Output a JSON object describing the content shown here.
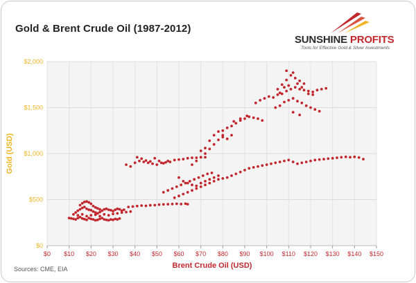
{
  "chart_data": {
    "type": "scatter",
    "title": "Gold & Brent Crude Oil (1987-2012)",
    "xlabel": "Brent Crude Oil (USD)",
    "ylabel": "Gold (USD)",
    "xlim": [
      0,
      150
    ],
    "ylim": [
      0,
      2000
    ],
    "x_ticks": [
      "$0",
      "$10",
      "$20",
      "$30",
      "$40",
      "$50",
      "$60",
      "$70",
      "$80",
      "$90",
      "$100",
      "$110",
      "$120",
      "$130",
      "$140",
      "$150"
    ],
    "y_ticks": [
      "$0",
      "$500",
      "$1,000",
      "$1,500",
      "$2,000"
    ],
    "grid": true,
    "series": [
      {
        "points": [
          [
            10,
            300
          ],
          [
            11,
            296
          ],
          [
            12,
            290
          ],
          [
            13,
            285
          ],
          [
            14,
            300
          ],
          [
            15,
            310
          ],
          [
            16,
            295
          ],
          [
            17,
            288
          ],
          [
            18,
            280
          ],
          [
            19,
            300
          ],
          [
            20,
            290
          ],
          [
            21,
            285
          ],
          [
            22,
            275
          ],
          [
            23,
            280
          ],
          [
            24,
            290
          ],
          [
            25,
            300
          ],
          [
            26,
            285
          ],
          [
            27,
            280
          ],
          [
            28,
            275
          ],
          [
            29,
            285
          ],
          [
            30,
            280
          ],
          [
            31,
            290
          ],
          [
            32,
            285
          ],
          [
            33,
            295
          ],
          [
            12,
            340
          ],
          [
            13,
            360
          ],
          [
            14,
            380
          ],
          [
            15,
            395
          ],
          [
            16,
            410
          ],
          [
            17,
            420
          ],
          [
            18,
            400
          ],
          [
            19,
            390
          ],
          [
            20,
            385
          ],
          [
            21,
            370
          ],
          [
            22,
            360
          ],
          [
            23,
            350
          ],
          [
            24,
            365
          ],
          [
            25,
            380
          ],
          [
            26,
            395
          ],
          [
            27,
            400
          ],
          [
            28,
            390
          ],
          [
            29,
            385
          ],
          [
            30,
            375
          ],
          [
            31,
            390
          ],
          [
            32,
            400
          ],
          [
            33,
            395
          ],
          [
            34,
            380
          ],
          [
            35,
            390
          ],
          [
            15,
            440
          ],
          [
            16,
            460
          ],
          [
            17,
            475
          ],
          [
            18,
            480
          ],
          [
            19,
            470
          ],
          [
            20,
            455
          ],
          [
            21,
            430
          ],
          [
            22,
            415
          ],
          [
            23,
            405
          ],
          [
            24,
            395
          ],
          [
            14,
            330
          ],
          [
            16,
            340
          ],
          [
            18,
            320
          ],
          [
            20,
            330
          ],
          [
            22,
            335
          ],
          [
            24,
            320
          ],
          [
            26,
            340
          ],
          [
            28,
            330
          ],
          [
            30,
            345
          ],
          [
            32,
            350
          ],
          [
            34,
            360
          ],
          [
            36,
            365
          ],
          [
            38,
            370
          ],
          [
            37,
            420
          ],
          [
            39,
            425
          ],
          [
            41,
            430
          ],
          [
            43,
            435
          ],
          [
            45,
            432
          ],
          [
            47,
            438
          ],
          [
            49,
            440
          ],
          [
            51,
            445
          ],
          [
            53,
            448
          ],
          [
            55,
            450
          ],
          [
            57,
            452
          ],
          [
            59,
            455
          ],
          [
            61,
            452
          ],
          [
            63,
            456
          ],
          [
            64,
            450
          ],
          [
            36,
            880
          ],
          [
            38,
            860
          ],
          [
            40,
            900
          ],
          [
            42,
            920
          ],
          [
            44,
            910
          ],
          [
            46,
            900
          ],
          [
            48,
            890
          ],
          [
            50,
            880
          ],
          [
            52,
            900
          ],
          [
            54,
            905
          ],
          [
            56,
            910
          ],
          [
            58,
            930
          ],
          [
            60,
            935
          ],
          [
            62,
            940
          ],
          [
            64,
            950
          ],
          [
            66,
            955
          ],
          [
            68,
            955
          ],
          [
            70,
            960
          ],
          [
            72,
            960
          ],
          [
            41,
            960
          ],
          [
            43,
            945
          ],
          [
            45,
            925
          ],
          [
            47,
            915
          ],
          [
            49,
            950
          ],
          [
            51,
            920
          ],
          [
            53,
            895
          ],
          [
            55,
            920
          ],
          [
            53,
            580
          ],
          [
            55,
            600
          ],
          [
            57,
            620
          ],
          [
            59,
            640
          ],
          [
            61,
            660
          ],
          [
            63,
            680
          ],
          [
            65,
            700
          ],
          [
            67,
            720
          ],
          [
            69,
            740
          ],
          [
            71,
            760
          ],
          [
            73,
            780
          ],
          [
            75,
            790
          ],
          [
            58,
            520
          ],
          [
            60,
            540
          ],
          [
            62,
            560
          ],
          [
            64,
            580
          ],
          [
            66,
            600
          ],
          [
            68,
            620
          ],
          [
            70,
            640
          ],
          [
            72,
            660
          ],
          [
            74,
            680
          ],
          [
            76,
            700
          ],
          [
            78,
            720
          ],
          [
            80,
            730
          ],
          [
            82,
            740
          ],
          [
            84,
            760
          ],
          [
            86,
            780
          ],
          [
            88,
            800
          ],
          [
            90,
            820
          ],
          [
            92,
            840
          ],
          [
            94,
            850
          ],
          [
            96,
            860
          ],
          [
            98,
            870
          ],
          [
            100,
            880
          ],
          [
            102,
            890
          ],
          [
            104,
            900
          ],
          [
            106,
            910
          ],
          [
            108,
            920
          ],
          [
            110,
            930
          ],
          [
            112,
            910
          ],
          [
            114,
            890
          ],
          [
            116,
            900
          ],
          [
            118,
            910
          ],
          [
            120,
            920
          ],
          [
            122,
            930
          ],
          [
            124,
            935
          ],
          [
            126,
            940
          ],
          [
            128,
            945
          ],
          [
            130,
            950
          ],
          [
            132,
            955
          ],
          [
            134,
            960
          ],
          [
            136,
            965
          ],
          [
            138,
            960
          ],
          [
            140,
            965
          ],
          [
            142,
            958
          ],
          [
            144,
            940
          ],
          [
            60,
            740
          ],
          [
            62,
            700
          ],
          [
            64,
            680
          ],
          [
            66,
            660
          ],
          [
            68,
            650
          ],
          [
            70,
            680
          ],
          [
            72,
            700
          ],
          [
            74,
            720
          ],
          [
            76,
            740
          ],
          [
            78,
            760
          ],
          [
            66,
            880
          ],
          [
            68,
            920
          ],
          [
            70,
            960
          ],
          [
            72,
            1000
          ],
          [
            74,
            1050
          ],
          [
            76,
            1100
          ],
          [
            78,
            1150
          ],
          [
            80,
            1200
          ],
          [
            72,
            1060
          ],
          [
            74,
            1140
          ],
          [
            76,
            1200
          ],
          [
            78,
            1240
          ],
          [
            80,
            1180
          ],
          [
            82,
            1160
          ],
          [
            84,
            1200
          ],
          [
            70,
            1030
          ],
          [
            80,
            1250
          ],
          [
            82,
            1280
          ],
          [
            84,
            1300
          ],
          [
            86,
            1330
          ],
          [
            88,
            1360
          ],
          [
            90,
            1380
          ],
          [
            92,
            1400
          ],
          [
            94,
            1390
          ],
          [
            96,
            1380
          ],
          [
            98,
            1360
          ],
          [
            85,
            1350
          ],
          [
            88,
            1380
          ],
          [
            91,
            1410
          ],
          [
            95,
            1550
          ],
          [
            97,
            1580
          ],
          [
            99,
            1600
          ],
          [
            101,
            1620
          ],
          [
            103,
            1610
          ],
          [
            105,
            1640
          ],
          [
            107,
            1650
          ],
          [
            109,
            1680
          ],
          [
            111,
            1700
          ],
          [
            113,
            1720
          ],
          [
            115,
            1700
          ],
          [
            117,
            1690
          ],
          [
            119,
            1680
          ],
          [
            121,
            1670
          ],
          [
            123,
            1690
          ],
          [
            125,
            1700
          ],
          [
            127,
            1710
          ],
          [
            104,
            1500
          ],
          [
            106,
            1520
          ],
          [
            108,
            1560
          ],
          [
            110,
            1580
          ],
          [
            112,
            1600
          ],
          [
            114,
            1570
          ],
          [
            116,
            1550
          ],
          [
            118,
            1520
          ],
          [
            120,
            1500
          ],
          [
            122,
            1480
          ],
          [
            124,
            1460
          ],
          [
            112,
            1450
          ],
          [
            115,
            1420
          ],
          [
            105,
            1700
          ],
          [
            107,
            1750
          ],
          [
            109,
            1800
          ],
          [
            111,
            1850
          ],
          [
            113,
            1820
          ],
          [
            115,
            1790
          ],
          [
            117,
            1760
          ],
          [
            109,
            1900
          ],
          [
            112,
            1880
          ],
          [
            114,
            1760
          ],
          [
            106,
            1660
          ],
          [
            108,
            1720
          ],
          [
            110,
            1740
          ],
          [
            116,
            1720
          ],
          [
            119,
            1650
          ],
          [
            121,
            1640
          ]
        ]
      }
    ],
    "point_color": "#c1272d"
  },
  "logo": {
    "name_part1": "SUNSHINE",
    "name_part2": " PROFITS",
    "tagline": "Tools for Effective Gold & Silver Investments"
  },
  "source_note": "Sources: CME, EIA"
}
